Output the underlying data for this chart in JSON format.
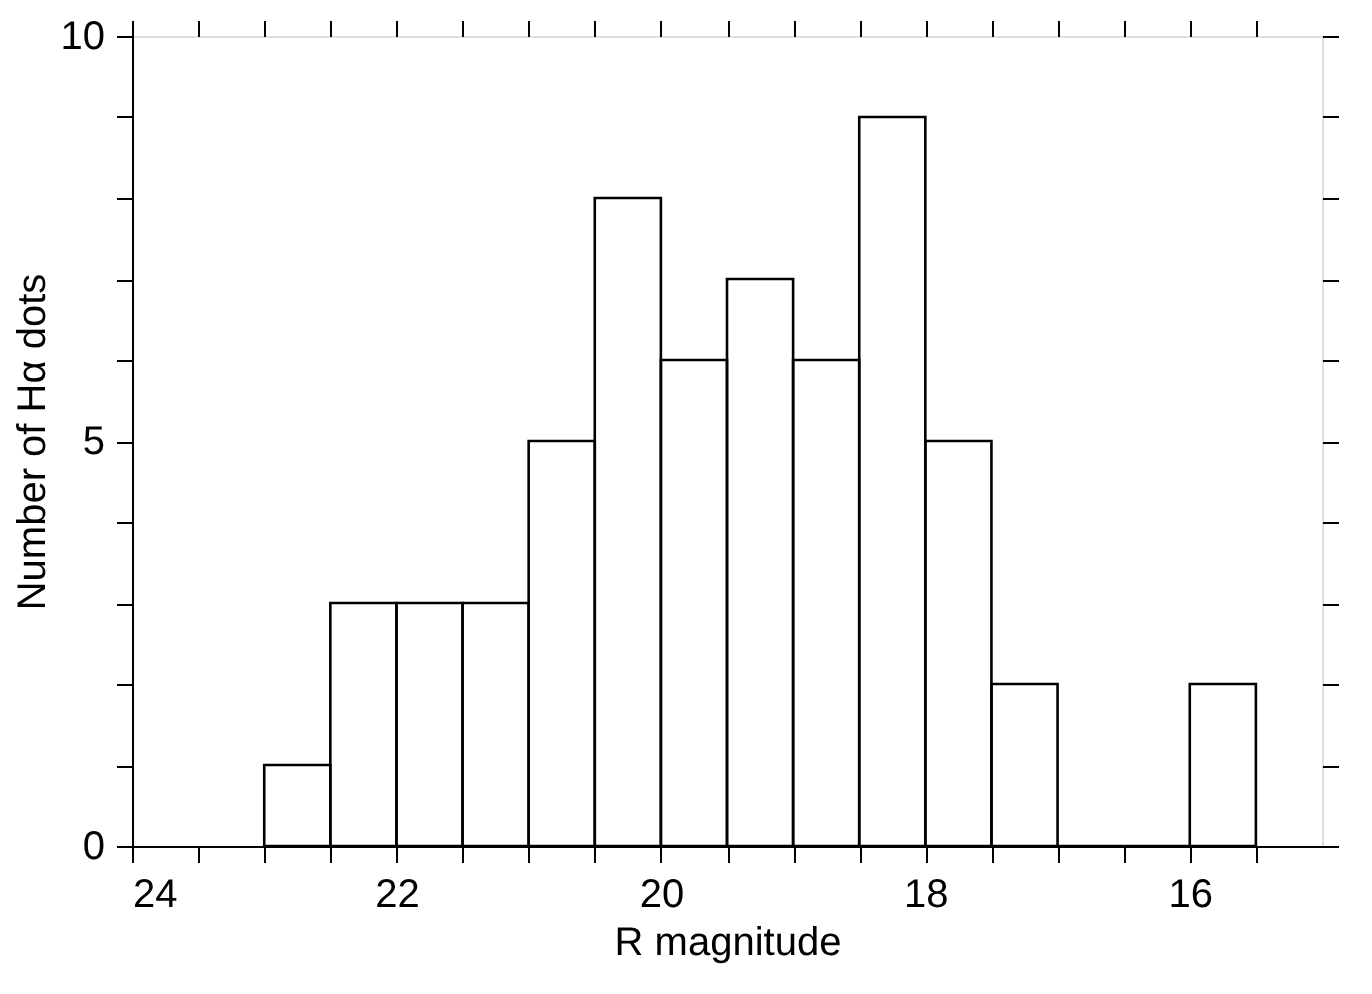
{
  "chart_data": {
    "type": "histogram",
    "xlabel": "R magnitude",
    "ylabel": "Number of Hα dots",
    "bins": [
      15.5,
      16,
      16.5,
      17,
      17.5,
      18,
      18.5,
      19,
      19.5,
      20,
      20.5,
      21,
      21.5,
      22,
      22.5,
      23
    ],
    "values": [
      2,
      0,
      0,
      2,
      5,
      9,
      6,
      7,
      6,
      8,
      5,
      3,
      3,
      3,
      1
    ],
    "color": "#000000",
    "xlim": [
      24,
      15
    ],
    "xticks": [
      24,
      {
        "value": 23.5,
        "label": null
      },
      {
        "value": 23,
        "label": null
      },
      {
        "value": 22.5,
        "label": null
      },
      22,
      {
        "value": 21.5,
        "label": null
      },
      {
        "value": 21,
        "label": null
      },
      {
        "value": 20.5,
        "label": null
      },
      20,
      {
        "value": 19.5,
        "label": null
      },
      {
        "value": 19,
        "label": null
      },
      {
        "value": 18.5,
        "label": null
      },
      18,
      {
        "value": 17.5,
        "label": null
      },
      {
        "value": 17,
        "label": null
      },
      {
        "value": 16.5,
        "label": null
      },
      16,
      {
        "value": 15.5,
        "label": null
      }
    ],
    "ylim": [
      0,
      10
    ],
    "yticks": [
      0,
      {
        "value": 1,
        "label": null
      },
      {
        "value": 2,
        "label": null
      },
      {
        "value": 3,
        "label": null
      },
      {
        "value": 4,
        "label": null
      },
      5,
      {
        "value": 6,
        "label": null
      },
      {
        "value": 7,
        "label": null
      },
      {
        "value": 8,
        "label": null
      },
      {
        "value": 9,
        "label": null
      },
      10
    ],
    "grid": false
  }
}
